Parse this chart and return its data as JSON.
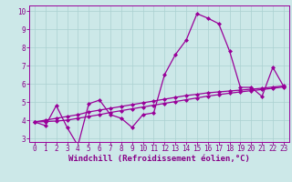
{
  "xlabel": "Windchill (Refroidissement éolien,°C)",
  "bg_color": "#cce8e8",
  "line_color": "#990099",
  "xlim": [
    0,
    23
  ],
  "ylim": [
    2.8,
    10.3
  ],
  "xticks": [
    0,
    1,
    2,
    3,
    4,
    5,
    6,
    7,
    8,
    9,
    10,
    11,
    12,
    13,
    14,
    15,
    16,
    17,
    18,
    19,
    20,
    21,
    22,
    23
  ],
  "yticks": [
    3,
    4,
    5,
    6,
    7,
    8,
    9,
    10
  ],
  "curve1_x": [
    0,
    1,
    2,
    3,
    4,
    5,
    6,
    7,
    8,
    9,
    10,
    11,
    12,
    13,
    14,
    15,
    16,
    17,
    18,
    19,
    20,
    21,
    22,
    23
  ],
  "curve1_y": [
    3.9,
    3.7,
    4.8,
    3.6,
    2.6,
    4.9,
    5.1,
    4.3,
    4.1,
    3.6,
    4.3,
    4.4,
    6.5,
    7.6,
    8.4,
    9.85,
    9.6,
    9.3,
    7.8,
    5.8,
    5.8,
    5.3,
    6.9,
    5.85
  ],
  "curve2_x": [
    0,
    1,
    2,
    3,
    4,
    5,
    6,
    7,
    8,
    9,
    10,
    11,
    12,
    13,
    14,
    15,
    16,
    17,
    18,
    19,
    20,
    21,
    22,
    23
  ],
  "curve2_y": [
    3.9,
    4.0,
    4.1,
    4.2,
    4.3,
    4.45,
    4.55,
    4.65,
    4.75,
    4.85,
    4.95,
    5.05,
    5.15,
    5.25,
    5.35,
    5.42,
    5.5,
    5.55,
    5.6,
    5.65,
    5.7,
    5.75,
    5.82,
    5.88
  ],
  "curve3_x": [
    0,
    1,
    2,
    3,
    4,
    5,
    6,
    7,
    8,
    9,
    10,
    11,
    12,
    13,
    14,
    15,
    16,
    17,
    18,
    19,
    20,
    21,
    22,
    23
  ],
  "curve3_y": [
    3.9,
    3.92,
    3.95,
    4.0,
    4.1,
    4.2,
    4.3,
    4.42,
    4.52,
    4.62,
    4.72,
    4.82,
    4.92,
    5.02,
    5.12,
    5.22,
    5.32,
    5.4,
    5.48,
    5.55,
    5.62,
    5.68,
    5.75,
    5.82
  ],
  "grid_color": "#aad0d0",
  "marker": "D",
  "markersize": 2.0,
  "linewidth": 0.9,
  "font_color": "#880088",
  "tick_fontsize": 5.5,
  "xlabel_fontsize": 6.5
}
